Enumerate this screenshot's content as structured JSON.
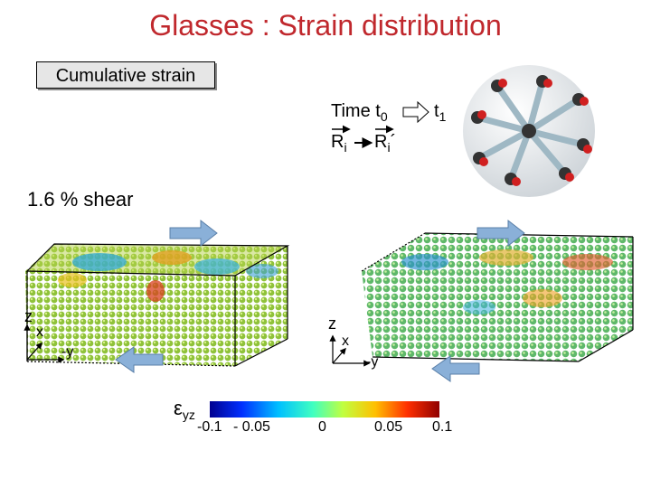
{
  "title": "Glasses : Strain distribution",
  "cumulative_label": "Cumulative strain",
  "time_label": "Time t",
  "time_sub0": "0",
  "time_end": "t",
  "time_sub1": "1",
  "r_label": "R",
  "r_sub": "i",
  "r_prime": "´",
  "shear_label": "1.6 % shear",
  "axes": {
    "z": "z",
    "x": "x",
    "neg_y": "-y"
  },
  "colorbar": {
    "symbol": "ε",
    "symbol_sub": "yz",
    "ticks": [
      "-0.1",
      "- 0.05",
      "0",
      "0.05",
      "0.1"
    ],
    "colors": [
      "#000090",
      "#0030ff",
      "#00c0ff",
      "#40ffc0",
      "#c0ff40",
      "#ffc000",
      "#ff3000",
      "#900000"
    ]
  }
}
